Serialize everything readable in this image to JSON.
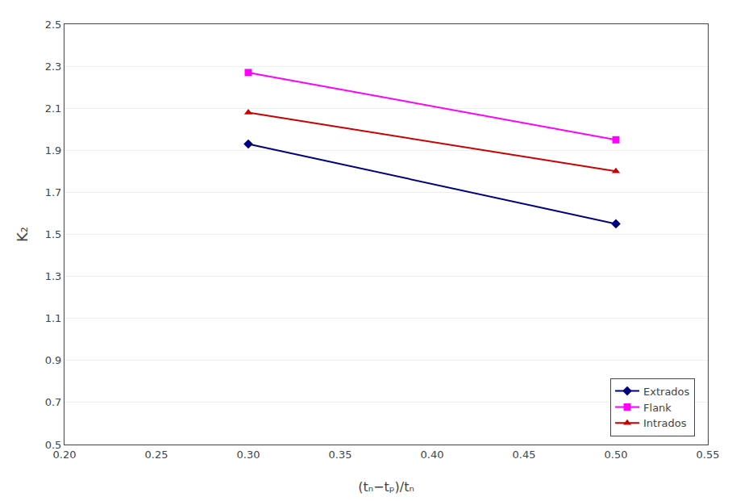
{
  "chart_data": {
    "type": "line",
    "x_label": "(tₙ−tₚ)/tₙ",
    "y_label": "K₂",
    "x": [
      0.3,
      0.5
    ],
    "series": [
      {
        "name": "Extrados",
        "color": "#000080",
        "marker": "diamond",
        "values": [
          1.93,
          1.55
        ]
      },
      {
        "name": "Flank",
        "color": "#FF00FF",
        "marker": "square",
        "values": [
          2.27,
          1.95
        ]
      },
      {
        "name": "Intrados",
        "color": "#CC0000",
        "marker": "triangle-up",
        "values": [
          2.08,
          1.8
        ]
      }
    ],
    "xlim": [
      0.2,
      0.55
    ],
    "ylim": [
      0.5,
      2.5
    ],
    "xticks": [
      {
        "value": 0.2,
        "label": "0.20"
      },
      0.25,
      {
        "value": 0.3,
        "label": "0.30"
      },
      0.35,
      {
        "value": 0.4,
        "label": "0.40"
      },
      0.45,
      {
        "value": 0.5,
        "label": "0.50"
      },
      0.55
    ],
    "yticks": [
      0.5,
      0.7,
      0.9,
      1.1,
      1.3,
      1.5,
      1.7,
      1.9,
      2.1,
      2.3,
      2.5
    ],
    "grid": "y",
    "legend": "lower right"
  }
}
